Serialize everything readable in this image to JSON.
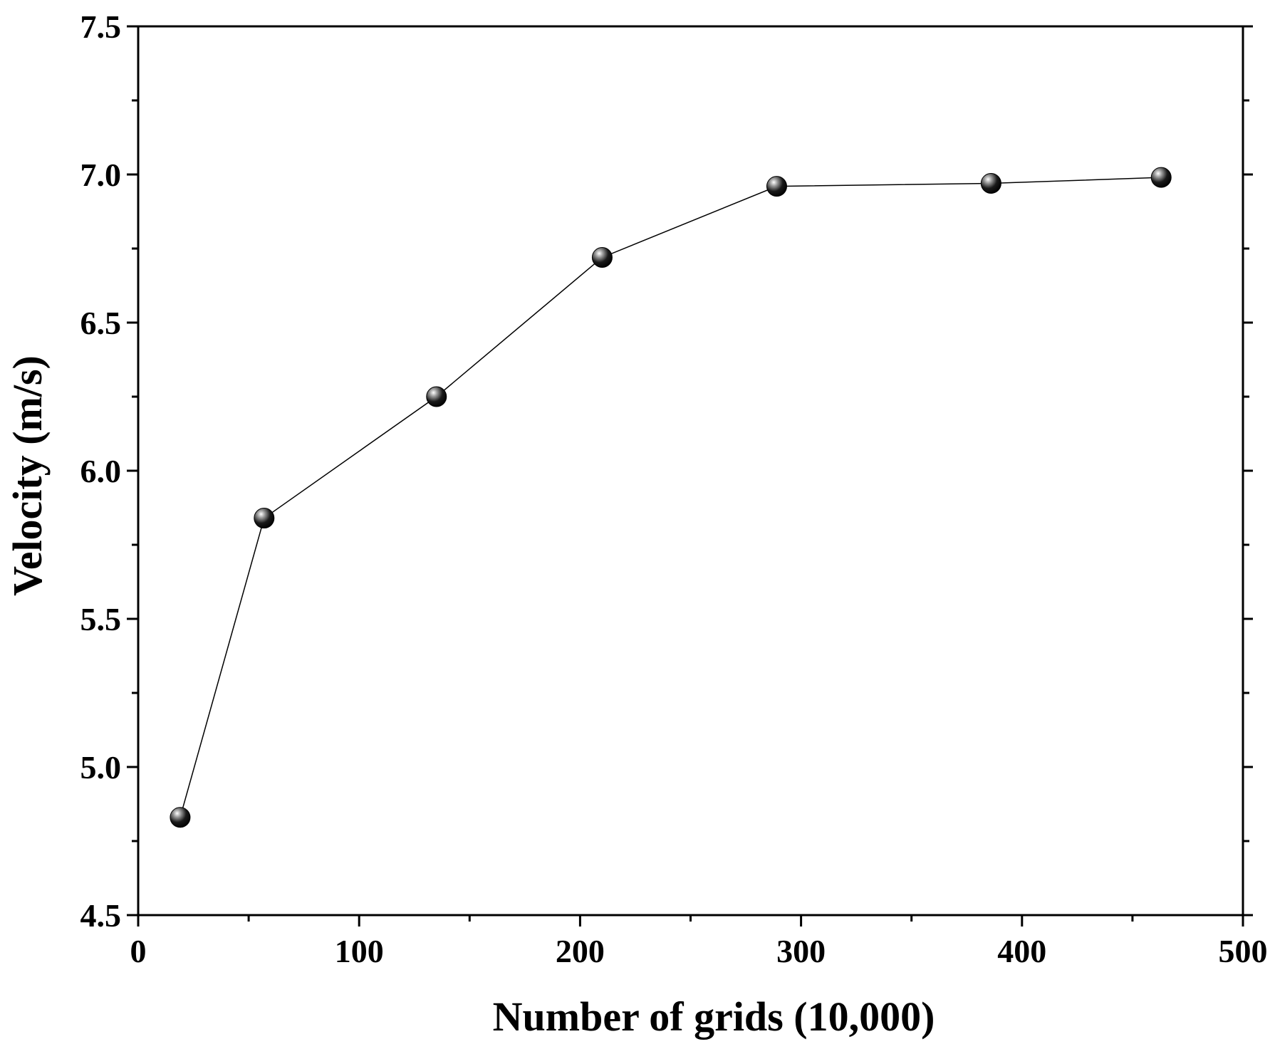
{
  "chart_data": {
    "type": "line",
    "title": "",
    "xlabel": "Number of grids (10,000)",
    "ylabel": "Velocity (m/s)",
    "xlim": [
      0,
      500
    ],
    "ylim": [
      4.5,
      7.5
    ],
    "x_ticks": [
      0,
      100,
      200,
      300,
      400,
      500
    ],
    "x_tick_labels": [
      "0",
      "100",
      "200",
      "300",
      "400",
      "500"
    ],
    "y_ticks": [
      4.5,
      5.0,
      5.5,
      6.0,
      6.5,
      7.0,
      7.5
    ],
    "y_tick_labels": [
      "4.5",
      "5.0",
      "5.5",
      "6.0",
      "6.5",
      "7.0",
      "7.5"
    ],
    "grid": false,
    "legend": "none",
    "series": [
      {
        "x": [
          19,
          57,
          135,
          210,
          289,
          386,
          463
        ],
        "y": [
          4.83,
          5.84,
          6.25,
          6.72,
          6.96,
          6.97,
          6.99
        ],
        "line_color": "#000000",
        "marker": "sphere",
        "marker_color": "#000000"
      }
    ]
  }
}
